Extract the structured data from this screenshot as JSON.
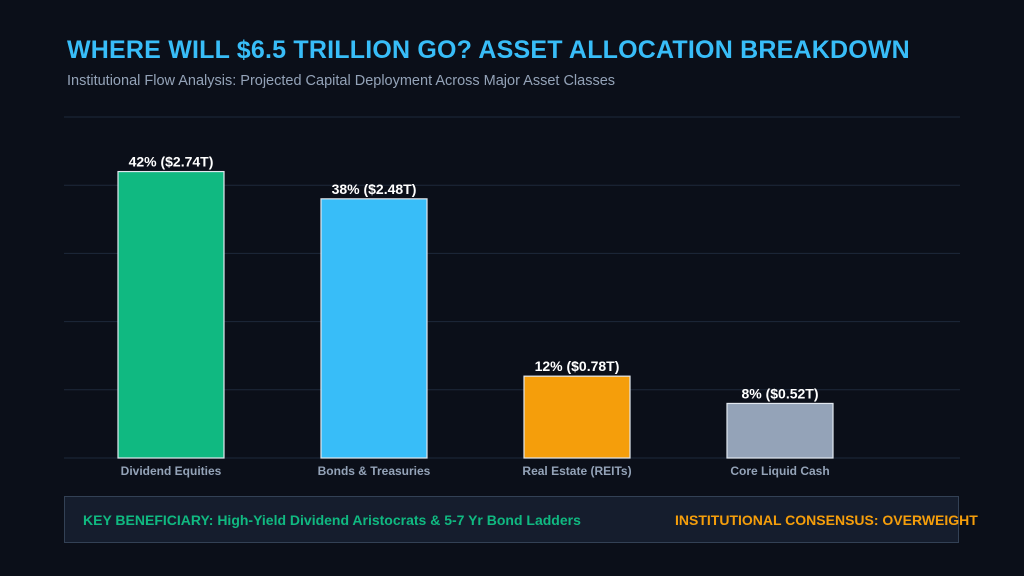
{
  "header": {
    "title": "WHERE WILL $6.5 TRILLION GO? ASSET ALLOCATION BREAKDOWN",
    "subtitle": "Institutional Flow Analysis: Projected Capital Deployment Across Major Asset Classes"
  },
  "chart_data": {
    "type": "bar",
    "title": "WHERE WILL $6.5 TRILLION GO? ASSET ALLOCATION BREAKDOWN",
    "subtitle": "Institutional Flow Analysis: Projected Capital Deployment Across Major Asset Classes",
    "categories": [
      "Dividend Equities",
      "Bonds & Treasuries",
      "Real Estate (REITs)",
      "Core Liquid Cash"
    ],
    "values": [
      42,
      38,
      12,
      8
    ],
    "amounts_trillions": [
      2.74,
      2.48,
      0.78,
      0.52
    ],
    "data_labels": [
      "42% ($2.74T)",
      "38% ($2.48T)",
      "12% ($0.78T)",
      "8% ($0.52T)"
    ],
    "colors": [
      "#10b981",
      "#38bdf8",
      "#f59e0b",
      "#94a3b8"
    ],
    "unit": "%",
    "ylim": [
      0,
      50
    ],
    "grid": true,
    "xlabel": "",
    "ylabel": ""
  },
  "banner": {
    "key_beneficiary": "KEY BENEFICIARY: High-Yield Dividend Aristocrats & 5-7 Yr Bond Ladders",
    "consensus": "INSTITUTIONAL CONSENSUS: OVERWEIGHT"
  },
  "colors": {
    "background": "#0b0f19",
    "title": "#38bdf8",
    "subtitle": "#94a3b8",
    "gridline": "#1e293b",
    "bar_outline": "#e2e8f0",
    "label": "#ffffff",
    "tick": "#94a3b8",
    "beneficiary": "#10b981",
    "consensus": "#f59e0b"
  }
}
